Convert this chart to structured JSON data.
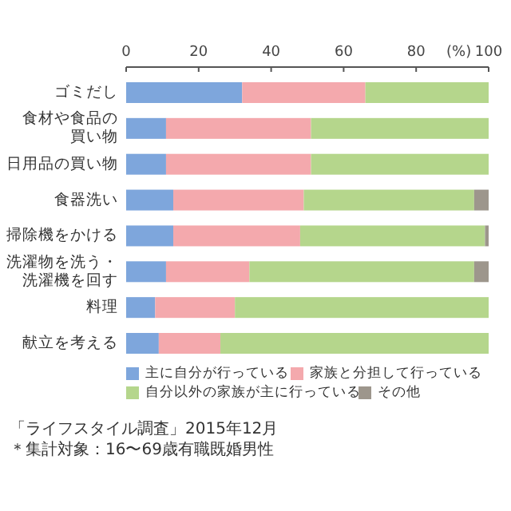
{
  "chart_data": {
    "type": "bar",
    "orientation": "horizontal",
    "stacked": true,
    "categories": [
      "ゴミだし",
      "食材や食品の買い物",
      "日用品の買い物",
      "食器洗い",
      "掃除機をかける",
      "洗濯物を洗う・洗濯機を回す",
      "料理",
      "献立を考える"
    ],
    "series": [
      {
        "name": "主に自分が行っている",
        "color": "#7ea6dc",
        "values": [
          32,
          11,
          11,
          13,
          13,
          11,
          8,
          9
        ]
      },
      {
        "name": "家族と分担して行っている",
        "color": "#f4a9ad",
        "values": [
          34,
          40,
          40,
          36,
          35,
          23,
          22,
          17
        ]
      },
      {
        "name": "自分以外の家族が主に行っている",
        "color": "#b5d68c",
        "values": [
          34,
          49,
          49,
          47,
          51,
          62,
          70,
          74
        ]
      },
      {
        "name": "その他",
        "color": "#9d968c",
        "values": [
          0,
          0,
          0,
          4,
          1,
          4,
          0,
          0
        ]
      }
    ],
    "xlabel": "(%)",
    "xlim": [
      0,
      100
    ],
    "xticks": [
      0,
      20,
      40,
      60,
      80,
      100
    ],
    "grid": false,
    "legend": "bottom",
    "annotations": [
      "「ライフスタイル調査」2015年12月",
      "＊集計対象：16〜69歳有職既婚男性"
    ]
  }
}
